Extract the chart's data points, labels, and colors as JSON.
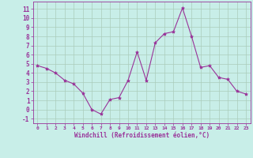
{
  "x": [
    0,
    1,
    2,
    3,
    4,
    5,
    6,
    7,
    8,
    9,
    10,
    11,
    12,
    13,
    14,
    15,
    16,
    17,
    18,
    19,
    20,
    21,
    22,
    23
  ],
  "y": [
    4.8,
    4.5,
    4.0,
    3.2,
    2.8,
    1.8,
    0.0,
    -0.5,
    1.1,
    1.3,
    3.2,
    6.3,
    3.2,
    7.3,
    8.3,
    8.5,
    11.1,
    8.0,
    4.6,
    4.8,
    3.5,
    3.3,
    2.0,
    1.7
  ],
  "line_color": "#993399",
  "marker": "*",
  "marker_size": 3,
  "bg_color": "#c8eee8",
  "grid_color": "#aaccbb",
  "xlabel": "Windchill (Refroidissement éolien,°C)",
  "xlabel_color": "#993399",
  "tick_color": "#993399",
  "spine_color": "#993399",
  "ylim": [
    -1.5,
    11.8
  ],
  "xlim": [
    -0.5,
    23.5
  ],
  "yticks": [
    -1,
    0,
    1,
    2,
    3,
    4,
    5,
    6,
    7,
    8,
    9,
    10,
    11
  ],
  "xticks": [
    0,
    1,
    2,
    3,
    4,
    5,
    6,
    7,
    8,
    9,
    10,
    11,
    12,
    13,
    14,
    15,
    16,
    17,
    18,
    19,
    20,
    21,
    22,
    23
  ],
  "ytick_fontsize": 5.5,
  "xtick_fontsize": 4.5,
  "xlabel_fontsize": 5.5
}
